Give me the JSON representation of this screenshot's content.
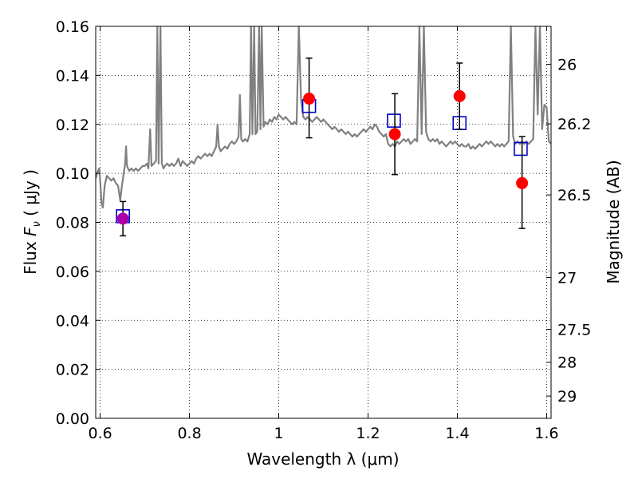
{
  "chart_data": {
    "type": "scatter",
    "xlabel": "Wavelength  λ (μm)",
    "ylabel": "Flux  F_ν  ( μJy )",
    "ylabel_parts": {
      "prefix": "Flux  ",
      "symbol": "F",
      "subscript": "ν",
      "unit": "  ( μJy )"
    },
    "y2label": "Magnitude (AB)",
    "xlim": [
      0.59,
      1.61
    ],
    "ylim": [
      0.0,
      0.16
    ],
    "xticks": [
      0.6,
      0.8,
      1.0,
      1.2,
      1.4,
      1.6
    ],
    "xtick_labels": [
      "0.6",
      "0.8",
      "1",
      "1.2",
      "1.4",
      "1.6"
    ],
    "yticks": [
      0.0,
      0.02,
      0.04,
      0.06,
      0.08,
      0.1,
      0.12,
      0.14,
      0.16
    ],
    "ytick_labels": [
      "0.00",
      "0.02",
      "0.04",
      "0.06",
      "0.08",
      "0.10",
      "0.12",
      "0.14",
      "0.16"
    ],
    "y2ticks": [
      {
        "label": "26",
        "flux": 0.1445
      },
      {
        "label": "26.2",
        "flux": 0.1202
      },
      {
        "label": "26.5",
        "flux": 0.0912
      },
      {
        "label": "27",
        "flux": 0.0575
      },
      {
        "label": "27.5",
        "flux": 0.0363
      },
      {
        "label": "28",
        "flux": 0.0229
      },
      {
        "label": "29",
        "flux": 0.0091
      }
    ],
    "grid": "dotted",
    "series": [
      {
        "kind": "line",
        "color": "#808080",
        "points": [
          [
            0.59,
            0.098
          ],
          [
            0.595,
            0.101
          ],
          [
            0.598,
            0.102
          ],
          [
            0.6,
            0.097
          ],
          [
            0.603,
            0.088
          ],
          [
            0.606,
            0.086
          ],
          [
            0.61,
            0.095
          ],
          [
            0.615,
            0.099
          ],
          [
            0.62,
            0.098
          ],
          [
            0.625,
            0.097
          ],
          [
            0.63,
            0.098
          ],
          [
            0.635,
            0.096
          ],
          [
            0.64,
            0.095
          ],
          [
            0.645,
            0.089
          ],
          [
            0.648,
            0.094
          ],
          [
            0.652,
            0.099
          ],
          [
            0.656,
            0.104
          ],
          [
            0.658,
            0.111
          ],
          [
            0.66,
            0.103
          ],
          [
            0.665,
            0.101
          ],
          [
            0.67,
            0.102
          ],
          [
            0.675,
            0.101
          ],
          [
            0.68,
            0.102
          ],
          [
            0.685,
            0.101
          ],
          [
            0.69,
            0.102
          ],
          [
            0.695,
            0.103
          ],
          [
            0.7,
            0.103
          ],
          [
            0.705,
            0.104
          ],
          [
            0.708,
            0.102
          ],
          [
            0.712,
            0.118
          ],
          [
            0.715,
            0.103
          ],
          [
            0.72,
            0.104
          ],
          [
            0.725,
            0.105
          ],
          [
            0.728,
            0.16
          ],
          [
            0.731,
            0.104
          ],
          [
            0.735,
            0.16
          ],
          [
            0.738,
            0.104
          ],
          [
            0.742,
            0.102
          ],
          [
            0.745,
            0.103
          ],
          [
            0.75,
            0.104
          ],
          [
            0.755,
            0.103
          ],
          [
            0.76,
            0.104
          ],
          [
            0.765,
            0.103
          ],
          [
            0.77,
            0.104
          ],
          [
            0.775,
            0.106
          ],
          [
            0.78,
            0.103
          ],
          [
            0.785,
            0.105
          ],
          [
            0.79,
            0.104
          ],
          [
            0.795,
            0.103
          ],
          [
            0.8,
            0.104
          ],
          [
            0.805,
            0.105
          ],
          [
            0.81,
            0.104
          ],
          [
            0.815,
            0.106
          ],
          [
            0.82,
            0.107
          ],
          [
            0.825,
            0.106
          ],
          [
            0.83,
            0.107
          ],
          [
            0.835,
            0.108
          ],
          [
            0.84,
            0.107
          ],
          [
            0.845,
            0.108
          ],
          [
            0.85,
            0.107
          ],
          [
            0.855,
            0.109
          ],
          [
            0.86,
            0.111
          ],
          [
            0.863,
            0.12
          ],
          [
            0.866,
            0.111
          ],
          [
            0.87,
            0.109
          ],
          [
            0.875,
            0.11
          ],
          [
            0.88,
            0.111
          ],
          [
            0.885,
            0.11
          ],
          [
            0.89,
            0.112
          ],
          [
            0.895,
            0.113
          ],
          [
            0.9,
            0.112
          ],
          [
            0.905,
            0.113
          ],
          [
            0.91,
            0.115
          ],
          [
            0.913,
            0.132
          ],
          [
            0.916,
            0.114
          ],
          [
            0.92,
            0.113
          ],
          [
            0.925,
            0.114
          ],
          [
            0.93,
            0.113
          ],
          [
            0.935,
            0.116
          ],
          [
            0.938,
            0.16
          ],
          [
            0.941,
            0.116
          ],
          [
            0.945,
            0.16
          ],
          [
            0.948,
            0.116
          ],
          [
            0.952,
            0.117
          ],
          [
            0.956,
            0.16
          ],
          [
            0.959,
            0.118
          ],
          [
            0.962,
            0.16
          ],
          [
            0.966,
            0.119
          ],
          [
            0.97,
            0.121
          ],
          [
            0.975,
            0.12
          ],
          [
            0.98,
            0.122
          ],
          [
            0.985,
            0.121
          ],
          [
            0.99,
            0.123
          ],
          [
            0.995,
            0.122
          ],
          [
            1.0,
            0.124
          ],
          [
            1.005,
            0.123
          ],
          [
            1.01,
            0.122
          ],
          [
            1.015,
            0.123
          ],
          [
            1.02,
            0.122
          ],
          [
            1.025,
            0.121
          ],
          [
            1.03,
            0.12
          ],
          [
            1.035,
            0.121
          ],
          [
            1.04,
            0.12
          ],
          [
            1.045,
            0.16
          ],
          [
            1.05,
            0.13
          ],
          [
            1.055,
            0.123
          ],
          [
            1.06,
            0.122
          ],
          [
            1.065,
            0.123
          ],
          [
            1.07,
            0.122
          ],
          [
            1.075,
            0.121
          ],
          [
            1.08,
            0.122
          ],
          [
            1.085,
            0.123
          ],
          [
            1.09,
            0.122
          ],
          [
            1.095,
            0.121
          ],
          [
            1.1,
            0.122
          ],
          [
            1.105,
            0.121
          ],
          [
            1.11,
            0.12
          ],
          [
            1.115,
            0.119
          ],
          [
            1.12,
            0.118
          ],
          [
            1.125,
            0.119
          ],
          [
            1.13,
            0.118
          ],
          [
            1.135,
            0.117
          ],
          [
            1.14,
            0.118
          ],
          [
            1.145,
            0.117
          ],
          [
            1.15,
            0.116
          ],
          [
            1.155,
            0.117
          ],
          [
            1.16,
            0.116
          ],
          [
            1.165,
            0.115
          ],
          [
            1.17,
            0.116
          ],
          [
            1.175,
            0.115
          ],
          [
            1.18,
            0.116
          ],
          [
            1.185,
            0.117
          ],
          [
            1.19,
            0.118
          ],
          [
            1.195,
            0.117
          ],
          [
            1.2,
            0.118
          ],
          [
            1.205,
            0.119
          ],
          [
            1.21,
            0.118
          ],
          [
            1.215,
            0.12
          ],
          [
            1.22,
            0.119
          ],
          [
            1.225,
            0.117
          ],
          [
            1.23,
            0.116
          ],
          [
            1.235,
            0.115
          ],
          [
            1.24,
            0.116
          ],
          [
            1.245,
            0.112
          ],
          [
            1.25,
            0.111
          ],
          [
            1.255,
            0.112
          ],
          [
            1.26,
            0.111
          ],
          [
            1.265,
            0.113
          ],
          [
            1.27,
            0.112
          ],
          [
            1.275,
            0.113
          ],
          [
            1.28,
            0.114
          ],
          [
            1.285,
            0.113
          ],
          [
            1.29,
            0.114
          ],
          [
            1.295,
            0.112
          ],
          [
            1.3,
            0.113
          ],
          [
            1.305,
            0.114
          ],
          [
            1.31,
            0.113
          ],
          [
            1.315,
            0.16
          ],
          [
            1.32,
            0.116
          ],
          [
            1.325,
            0.16
          ],
          [
            1.33,
            0.117
          ],
          [
            1.335,
            0.114
          ],
          [
            1.34,
            0.113
          ],
          [
            1.345,
            0.114
          ],
          [
            1.35,
            0.113
          ],
          [
            1.355,
            0.114
          ],
          [
            1.36,
            0.112
          ],
          [
            1.365,
            0.113
          ],
          [
            1.37,
            0.112
          ],
          [
            1.375,
            0.111
          ],
          [
            1.38,
            0.112
          ],
          [
            1.385,
            0.113
          ],
          [
            1.39,
            0.112
          ],
          [
            1.395,
            0.113
          ],
          [
            1.4,
            0.112
          ],
          [
            1.405,
            0.111
          ],
          [
            1.41,
            0.112
          ],
          [
            1.415,
            0.111
          ],
          [
            1.42,
            0.111
          ],
          [
            1.425,
            0.112
          ],
          [
            1.43,
            0.11
          ],
          [
            1.435,
            0.111
          ],
          [
            1.44,
            0.11
          ],
          [
            1.445,
            0.111
          ],
          [
            1.45,
            0.112
          ],
          [
            1.455,
            0.111
          ],
          [
            1.46,
            0.112
          ],
          [
            1.465,
            0.113
          ],
          [
            1.47,
            0.112
          ],
          [
            1.475,
            0.113
          ],
          [
            1.48,
            0.112
          ],
          [
            1.485,
            0.111
          ],
          [
            1.49,
            0.112
          ],
          [
            1.495,
            0.111
          ],
          [
            1.5,
            0.112
          ],
          [
            1.505,
            0.111
          ],
          [
            1.51,
            0.112
          ],
          [
            1.515,
            0.113
          ],
          [
            1.52,
            0.16
          ],
          [
            1.525,
            0.115
          ],
          [
            1.53,
            0.112
          ],
          [
            1.535,
            0.113
          ],
          [
            1.54,
            0.112
          ],
          [
            1.545,
            0.113
          ],
          [
            1.55,
            0.112
          ],
          [
            1.555,
            0.113
          ],
          [
            1.56,
            0.112
          ],
          [
            1.565,
            0.113
          ],
          [
            1.57,
            0.114
          ],
          [
            1.575,
            0.16
          ],
          [
            1.58,
            0.124
          ],
          [
            1.585,
            0.16
          ],
          [
            1.59,
            0.118
          ],
          [
            1.595,
            0.128
          ],
          [
            1.6,
            0.127
          ],
          [
            1.605,
            0.113
          ],
          [
            1.61,
            0.112
          ]
        ]
      },
      {
        "kind": "squares",
        "color": "#0000cc",
        "points": [
          {
            "x": 0.651,
            "y": 0.0825
          },
          {
            "x": 1.068,
            "y": 0.1275
          },
          {
            "x": 1.258,
            "y": 0.1215
          },
          {
            "x": 1.405,
            "y": 0.1205
          },
          {
            "x": 1.542,
            "y": 0.11
          }
        ]
      },
      {
        "kind": "points_with_errorbars",
        "color": "#ff0000",
        "points": [
          {
            "x": 0.651,
            "y": 0.0815,
            "err_low": 0.0745,
            "err_high": 0.0885,
            "color": "#aa00aa"
          },
          {
            "x": 1.068,
            "y": 0.1305,
            "err_low": 0.1145,
            "err_high": 0.147
          },
          {
            "x": 1.26,
            "y": 0.116,
            "err_low": 0.0995,
            "err_high": 0.1325
          },
          {
            "x": 1.405,
            "y": 0.1315,
            "err_low": 0.118,
            "err_high": 0.145
          },
          {
            "x": 1.545,
            "y": 0.096,
            "err_low": 0.0775,
            "err_high": 0.115
          }
        ]
      }
    ]
  }
}
